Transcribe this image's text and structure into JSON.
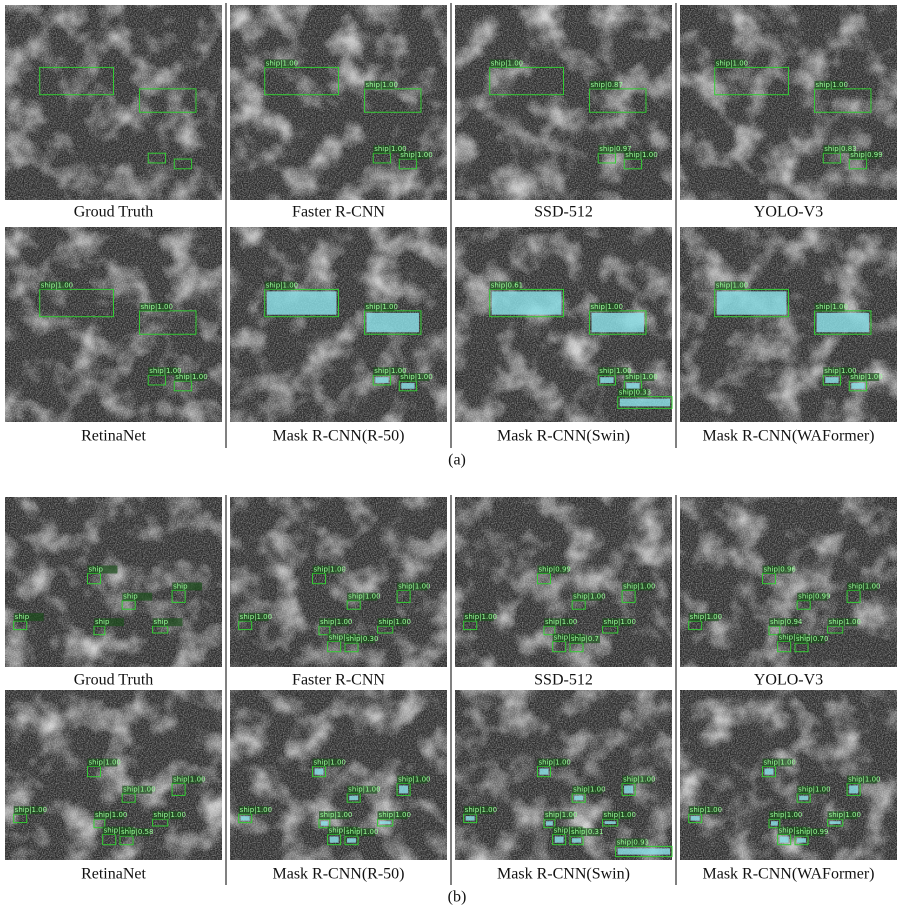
{
  "panels": [
    {
      "label": "(a)",
      "rows": [
        [
          {
            "caption": "Groud Truth",
            "detections": []
          },
          {
            "caption": "Faster R-CNN",
            "detections": [
              "ship|1.00",
              "ship|1.00",
              "ship|1.00",
              "ship|1.00"
            ]
          },
          {
            "caption": "SSD-512",
            "detections": [
              "ship|1.00",
              "ship|0.87",
              "ship|0.97",
              "ship|1.00"
            ]
          },
          {
            "caption": "YOLO-V3",
            "detections": [
              "ship|1.00",
              "ship|1.00",
              "ship|0.83",
              "ship|0.99"
            ]
          }
        ],
        [
          {
            "caption": "RetinaNet",
            "detections": [
              "ship|1.00",
              "ship|1.00",
              "ship|1.00",
              "ship|1.00"
            ]
          },
          {
            "caption": "Mask R-CNN(R-50)",
            "masks": true,
            "detections": [
              "ship|1.00",
              "ship|1.00",
              "ship|1.00",
              "ship|1.00"
            ]
          },
          {
            "caption": "Mask R-CNN(Swin)",
            "masks": true,
            "detections": [
              "ship|0.61",
              "ship|1.00",
              "ship|1.00",
              "ship|1.00",
              "ship|0.33"
            ]
          },
          {
            "caption": "Mask R-CNN(WAFormer)",
            "masks": true,
            "detections": [
              "ship|1.00",
              "ship|1.00",
              "ship|1.00",
              "ship|1.00"
            ]
          }
        ]
      ]
    },
    {
      "label": "(b)",
      "rows": [
        [
          {
            "caption": "Groud Truth",
            "detections": [
              "ship",
              "ship",
              "ship",
              "ship",
              "ship",
              "ship"
            ]
          },
          {
            "caption": "Faster R-CNN",
            "detections": [
              "ship|1.00",
              "ship|1.00",
              "ship|1.00",
              "ship|1.00",
              "ship|1.00",
              "ship|1.00",
              "ship|0.33",
              "ship|0.30"
            ]
          },
          {
            "caption": "SSD-512",
            "detections": [
              "ship|0.99",
              "ship|1.00",
              "ship|1.00",
              "ship|1.00",
              "ship|1.00",
              "ship|1.00",
              "ship|0.73",
              "ship|0.7"
            ]
          },
          {
            "caption": "YOLO-V3",
            "detections": [
              "ship|0.96",
              "ship|0.99",
              "ship|1.00",
              "ship|1.00",
              "ship|0.94",
              "ship|1.00",
              "ship|0.64",
              "ship|0.70"
            ]
          }
        ],
        [
          {
            "caption": "RetinaNet",
            "detections": [
              "ship|1.00",
              "ship|1.00",
              "ship|1.00",
              "ship|1.00",
              "ship|1.00",
              "ship|1.00",
              "ship|1.00",
              "ship|0.58"
            ]
          },
          {
            "caption": "Mask R-CNN(R-50)",
            "masks": true,
            "detections": [
              "ship|1.00",
              "ship|1.00",
              "ship|1.00",
              "ship|1.00",
              "ship|1.00",
              "ship|1.00",
              "ship|1.00",
              "ship|1.00"
            ]
          },
          {
            "caption": "Mask R-CNN(Swin)",
            "masks": true,
            "detections": [
              "ship|1.00",
              "ship|1.00",
              "ship|1.00",
              "ship|1.00",
              "ship|1.00",
              "ship|1.00",
              "ship|1.00",
              "ship|0.31",
              "ship|0.93"
            ]
          },
          {
            "caption": "Mask R-CNN(WAFormer)",
            "masks": true,
            "detections": [
              "ship|1.00",
              "ship|1.00",
              "ship|1.00",
              "ship|1.00",
              "ship|1.00",
              "ship|1.00",
              "ship|1.00",
              "ship|0.99"
            ]
          }
        ]
      ]
    }
  ]
}
